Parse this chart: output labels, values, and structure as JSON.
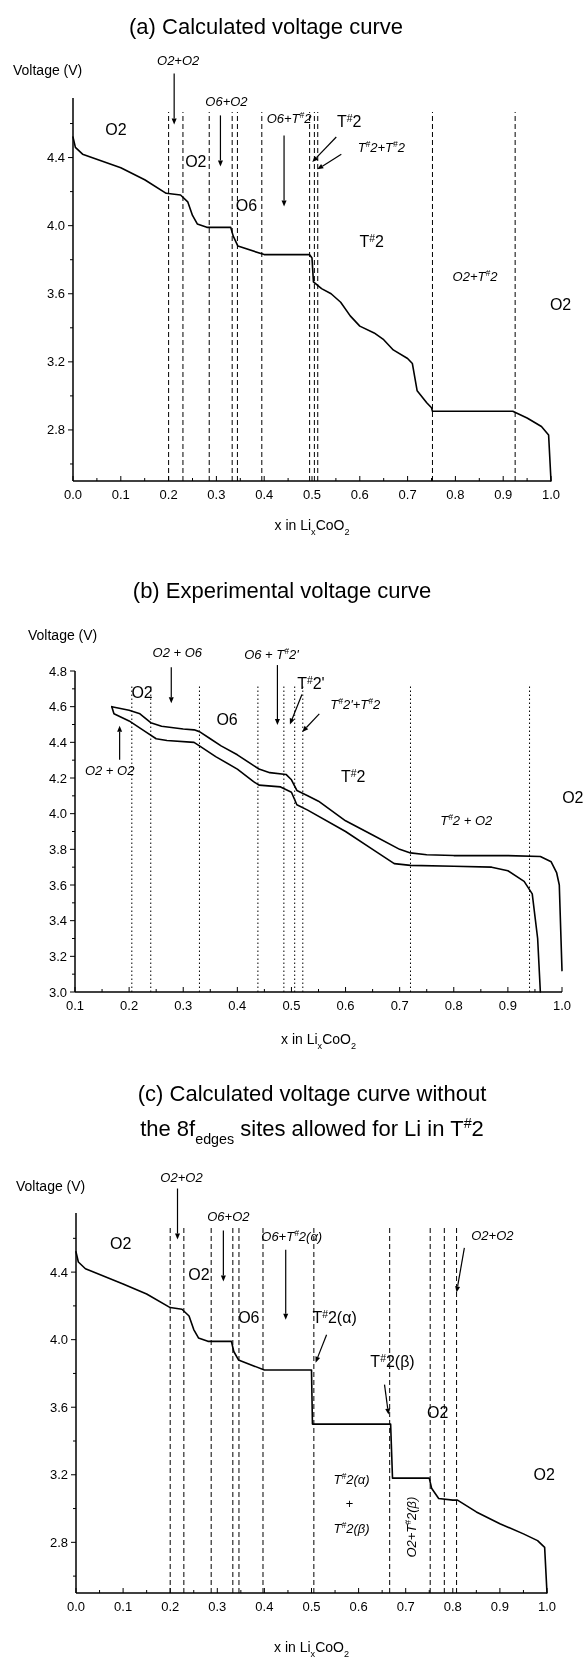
{
  "chart_data": [
    {
      "type": "line",
      "title": "(a) Calculated voltage curve",
      "xlabel": "x in Li$_{x}$CoO$_{2}$",
      "ylabel": "Voltage (V)",
      "xlim": [
        0,
        1
      ],
      "ylim": [
        2.5,
        4.75
      ],
      "xticks": [
        {
          "value": 0,
          "label": "0.0"
        },
        {
          "value": 0.05,
          "label": null
        },
        0.1,
        {
          "value": 0.15,
          "label": null
        },
        0.2,
        {
          "value": 0.25,
          "label": null
        },
        0.3,
        {
          "value": 0.35,
          "label": null
        },
        0.4,
        {
          "value": 0.45,
          "label": null
        },
        0.5,
        {
          "value": 0.55,
          "label": null
        },
        0.6,
        {
          "value": 0.65,
          "label": null
        },
        0.7,
        {
          "value": 0.75,
          "label": null
        },
        0.8,
        {
          "value": 0.85,
          "label": null
        },
        0.9,
        {
          "value": 0.95,
          "label": null
        },
        {
          "value": 1,
          "label": "1.0"
        }
      ],
      "yticks": [
        {
          "value": 2.6,
          "label": null
        },
        2.8,
        {
          "value": 3.0,
          "label": null
        },
        3.2,
        {
          "value": 3.4,
          "label": null
        },
        3.6,
        {
          "value": 3.8,
          "label": null
        },
        {
          "value": 4,
          "label": "4.0"
        },
        {
          "value": 4.2,
          "label": null
        },
        4.4,
        {
          "value": 4.6,
          "label": null
        }
      ],
      "series": [
        {
          "color": "#000000",
          "x": [
            0,
            0.005,
            0.02,
            0.1,
            0.15,
            0.195,
            0.225,
            0.24,
            0.25,
            0.26,
            0.28,
            0.33,
            0.335,
            0.345,
            0.4,
            0.495,
            0.5,
            0.503,
            0.52,
            0.54,
            0.56,
            0.58,
            0.6,
            0.63,
            0.65,
            0.67,
            0.7,
            0.71,
            0.72,
            0.74,
            0.75,
            0.752,
            0.92,
            0.95,
            0.98,
            0.995,
            1.0
          ],
          "values": [
            4.52,
            4.46,
            4.42,
            4.34,
            4.27,
            4.19,
            4.18,
            4.14,
            4.06,
            4.01,
            3.99,
            3.99,
            3.94,
            3.88,
            3.83,
            3.83,
            3.81,
            3.67,
            3.63,
            3.6,
            3.55,
            3.47,
            3.41,
            3.37,
            3.33,
            3.27,
            3.22,
            3.19,
            3.03,
            2.96,
            2.93,
            2.91,
            2.91,
            2.87,
            2.82,
            2.77,
            2.5
          ]
        }
      ],
      "ref_lines": [
        {
          "axis": "x",
          "value": 0.2,
          "line_style": "dashed"
        },
        {
          "axis": "x",
          "value": 0.23,
          "line_style": "dashed"
        },
        {
          "axis": "x",
          "value": 0.285,
          "line_style": "dashed"
        },
        {
          "axis": "x",
          "value": 0.333,
          "line_style": "dashed"
        },
        {
          "axis": "x",
          "value": 0.344,
          "line_style": "dashed"
        },
        {
          "axis": "x",
          "value": 0.395,
          "line_style": "dashed"
        },
        {
          "axis": "x",
          "value": 0.495,
          "line_style": "dashed"
        },
        {
          "axis": "x",
          "value": 0.505,
          "line_style": "dashed"
        },
        {
          "axis": "x",
          "value": 0.512,
          "line_style": "dashed"
        },
        {
          "axis": "x",
          "value": 0.752,
          "line_style": "dashed"
        },
        {
          "axis": "x",
          "value": 0.925,
          "line_style": "dashed"
        }
      ],
      "annotations": [
        "O2",
        "O2+O2",
        "O2",
        "O6+O2",
        "O6",
        "O6+T$^{#}$2",
        "T$^{#}$2",
        "T$^{#}$2+T$^{#}$2",
        "T$^{#}$2",
        "O2+T$^{#}$2",
        "O2"
      ]
    },
    {
      "type": "line",
      "title": "(b) Experimental voltage curve",
      "xlabel": "x in Li$_{x}$CoO$_{2}$",
      "ylabel": "Voltage (V)",
      "xlim": [
        0.1,
        1
      ],
      "ylim": [
        3,
        4.8
      ],
      "xticks": [
        0.1,
        {
          "value": 0.15,
          "label": null
        },
        0.2,
        {
          "value": 0.25,
          "label": null
        },
        0.3,
        {
          "value": 0.35,
          "label": null
        },
        0.4,
        {
          "value": 0.45,
          "label": null
        },
        0.5,
        {
          "value": 0.55,
          "label": null
        },
        0.6,
        {
          "value": 0.65,
          "label": null
        },
        0.7,
        {
          "value": 0.75,
          "label": null
        },
        0.8,
        {
          "value": 0.85,
          "label": null
        },
        0.9,
        {
          "value": 0.95,
          "label": null
        },
        {
          "value": 1,
          "label": "1.0"
        }
      ],
      "yticks": [
        {
          "value": 3,
          "label": "3.0"
        },
        {
          "value": 3.1,
          "label": null
        },
        3.2,
        {
          "value": 3.3,
          "label": null
        },
        3.4,
        {
          "value": 3.5,
          "label": null
        },
        3.6,
        {
          "value": 3.7,
          "label": null
        },
        3.8,
        {
          "value": 3.9,
          "label": null
        },
        {
          "value": 4,
          "label": "4.0"
        },
        {
          "value": 4.1,
          "label": null
        },
        4.2,
        {
          "value": 4.3,
          "label": null
        },
        4.4,
        {
          "value": 4.5,
          "label": null
        },
        4.6,
        {
          "value": 4.7,
          "label": null
        },
        4.8
      ],
      "series": [
        {
          "color": "#000000",
          "x": [
            0.168,
            0.2,
            0.22,
            0.24,
            0.26,
            0.3,
            0.32,
            0.33,
            0.35,
            0.37,
            0.4,
            0.44,
            0.46,
            0.49,
            0.5,
            0.51,
            0.53,
            0.55,
            0.6,
            0.65,
            0.7,
            0.72,
            0.75,
            0.8,
            0.9,
            0.96,
            0.98,
            0.99,
            0.995,
            1.0
          ],
          "values": [
            4.6,
            4.58,
            4.56,
            4.51,
            4.49,
            4.475,
            4.47,
            4.46,
            4.42,
            4.38,
            4.33,
            4.25,
            4.23,
            4.22,
            4.19,
            4.13,
            4.1,
            4.07,
            3.96,
            3.88,
            3.8,
            3.78,
            3.77,
            3.765,
            3.765,
            3.76,
            3.73,
            3.67,
            3.6,
            3.12
          ]
        },
        {
          "color": "#000000",
          "x": [
            0.168,
            0.172,
            0.2,
            0.23,
            0.25,
            0.27,
            0.32,
            0.33,
            0.36,
            0.4,
            0.43,
            0.44,
            0.48,
            0.5,
            0.51,
            0.53,
            0.6,
            0.65,
            0.69,
            0.72,
            0.8,
            0.87,
            0.9,
            0.93,
            0.945,
            0.955,
            0.96
          ],
          "values": [
            4.6,
            4.56,
            4.52,
            4.46,
            4.42,
            4.41,
            4.4,
            4.38,
            4.32,
            4.25,
            4.18,
            4.16,
            4.15,
            4.12,
            4.05,
            4.02,
            3.9,
            3.8,
            3.72,
            3.71,
            3.705,
            3.7,
            3.68,
            3.62,
            3.55,
            3.3,
            3.0
          ]
        }
      ],
      "ref_lines": [
        {
          "axis": "x",
          "value": 0.205,
          "line_style": "dotted"
        },
        {
          "axis": "x",
          "value": 0.24,
          "line_style": "dotted"
        },
        {
          "axis": "x",
          "value": 0.33,
          "line_style": "dotted"
        },
        {
          "axis": "x",
          "value": 0.438,
          "line_style": "dotted"
        },
        {
          "axis": "x",
          "value": 0.486,
          "line_style": "dotted"
        },
        {
          "axis": "x",
          "value": 0.506,
          "line_style": "dotted"
        },
        {
          "axis": "x",
          "value": 0.521,
          "line_style": "dotted"
        },
        {
          "axis": "x",
          "value": 0.72,
          "line_style": "dotted"
        },
        {
          "axis": "x",
          "value": 0.94,
          "line_style": "dotted"
        }
      ],
      "annotations": [
        "O2",
        "O2 + O6",
        "O2 + O2",
        "O6",
        "O6 + T$^{#}$2'",
        "T$^{#}$2'",
        "T$^{#}$2'+T$^{#}$2",
        "T$^{#}$2",
        "T$^{#}$2 + O2",
        "O2"
      ]
    },
    {
      "type": "line",
      "title": "(c) Calculated voltage curve without the 8f$_{edges}$ sites allowed for Li in T$^{#}$2",
      "xlabel": "x in Li$_{x}$CoO$_{2}$",
      "ylabel": "Voltage (V)",
      "xlim": [
        0,
        1
      ],
      "ylim": [
        2.5,
        4.75
      ],
      "xticks": [
        {
          "value": 0,
          "label": "0.0"
        },
        {
          "value": 0.05,
          "label": null
        },
        0.1,
        {
          "value": 0.15,
          "label": null
        },
        0.2,
        {
          "value": 0.25,
          "label": null
        },
        0.3,
        {
          "value": 0.35,
          "label": null
        },
        0.4,
        {
          "value": 0.45,
          "label": null
        },
        0.5,
        {
          "value": 0.55,
          "label": null
        },
        0.6,
        {
          "value": 0.65,
          "label": null
        },
        0.7,
        {
          "value": 0.75,
          "label": null
        },
        0.8,
        {
          "value": 0.85,
          "label": null
        },
        0.9,
        {
          "value": 0.95,
          "label": null
        },
        {
          "value": 1,
          "label": "1.0"
        }
      ],
      "yticks": [
        {
          "value": 2.6,
          "label": null
        },
        2.8,
        {
          "value": 3.0,
          "label": null
        },
        3.2,
        {
          "value": 3.4,
          "label": null
        },
        3.6,
        {
          "value": 3.8,
          "label": null
        },
        {
          "value": 4,
          "label": "4.0"
        },
        {
          "value": 4.2,
          "label": null
        },
        4.4,
        {
          "value": 4.6,
          "label": null
        }
      ],
      "series": [
        {
          "color": "#000000",
          "x": [
            0,
            0.005,
            0.02,
            0.1,
            0.15,
            0.2,
            0.225,
            0.24,
            0.25,
            0.26,
            0.28,
            0.33,
            0.335,
            0.345,
            0.4,
            0.5,
            0.502,
            0.668,
            0.672,
            0.75,
            0.755,
            0.77,
            0.8,
            0.81,
            0.85,
            0.9,
            0.95,
            0.98,
            0.995,
            1.0
          ],
          "values": [
            4.52,
            4.46,
            4.42,
            4.33,
            4.27,
            4.19,
            4.18,
            4.14,
            4.06,
            4.01,
            3.99,
            3.99,
            3.93,
            3.88,
            3.82,
            3.82,
            3.5,
            3.5,
            3.18,
            3.18,
            3.12,
            3.06,
            3.05,
            3.05,
            2.98,
            2.91,
            2.85,
            2.81,
            2.77,
            2.5
          ]
        }
      ],
      "ref_lines": [
        {
          "axis": "x",
          "value": 0.2,
          "line_style": "dashed"
        },
        {
          "axis": "x",
          "value": 0.229,
          "line_style": "dashed"
        },
        {
          "axis": "x",
          "value": 0.287,
          "line_style": "dashed"
        },
        {
          "axis": "x",
          "value": 0.333,
          "line_style": "dashed"
        },
        {
          "axis": "x",
          "value": 0.346,
          "line_style": "dashed"
        },
        {
          "axis": "x",
          "value": 0.397,
          "line_style": "dashed"
        },
        {
          "axis": "x",
          "value": 0.505,
          "line_style": "dashed"
        },
        {
          "axis": "x",
          "value": 0.666,
          "line_style": "dashed"
        },
        {
          "axis": "x",
          "value": 0.752,
          "line_style": "dashed"
        },
        {
          "axis": "x",
          "value": 0.782,
          "line_style": "dashed"
        },
        {
          "axis": "x",
          "value": 0.808,
          "line_style": "dashed"
        }
      ],
      "annotations": [
        "O2",
        "O2+O2",
        "O2",
        "O6+O2",
        "O6",
        "O6+T$^{#}$2(α)",
        "T$^{#}$2(α)",
        "T$^{#}$2(β)",
        "O2",
        {
          "text": "O2+O2",
          "x": 0.808,
          "y": 4.28
        },
        "O2",
        "T$^{#}$2(α)",
        "+",
        "T$^{#}$2(β)",
        "O2+T$^{#}$2(β)"
      ]
    }
  ]
}
